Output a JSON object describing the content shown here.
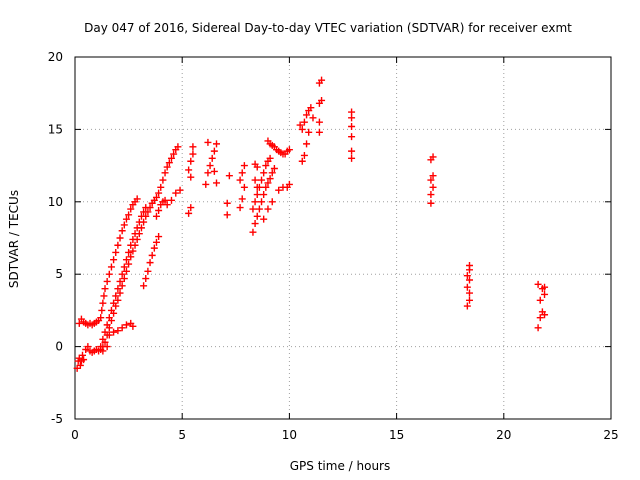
{
  "chart_data": {
    "type": "scatter",
    "title": "Day 047 of 2016, Sidereal Day-to-day VTEC variation (SDTVAR) for receiver exmt",
    "xlabel": "GPS time / hours",
    "ylabel": "SDTVAR / TECUs",
    "xlim": [
      0,
      25
    ],
    "ylim": [
      -5,
      20
    ],
    "xticks": [
      0,
      5,
      10,
      15,
      20,
      25
    ],
    "yticks": [
      -5,
      0,
      5,
      10,
      15,
      20
    ],
    "grid": true,
    "marker": "+",
    "color": "#ff0000",
    "series": [
      {
        "name": "SDTVAR",
        "points": [
          [
            0.1,
            -1.5
          ],
          [
            0.15,
            -1.0
          ],
          [
            0.2,
            -0.8
          ],
          [
            0.25,
            -1.3
          ],
          [
            0.3,
            -1.0
          ],
          [
            0.35,
            -0.6
          ],
          [
            0.4,
            -0.9
          ],
          [
            0.2,
            1.6
          ],
          [
            0.3,
            1.9
          ],
          [
            0.4,
            1.7
          ],
          [
            0.5,
            1.6
          ],
          [
            0.6,
            1.5
          ],
          [
            0.7,
            1.6
          ],
          [
            0.8,
            1.5
          ],
          [
            0.9,
            1.6
          ],
          [
            1.0,
            1.7
          ],
          [
            1.1,
            1.8
          ],
          [
            1.2,
            2.0
          ],
          [
            1.25,
            2.5
          ],
          [
            1.3,
            3.0
          ],
          [
            1.35,
            3.5
          ],
          [
            1.4,
            4.0
          ],
          [
            1.5,
            4.5
          ],
          [
            1.6,
            5.0
          ],
          [
            1.7,
            5.5
          ],
          [
            1.8,
            6.0
          ],
          [
            1.9,
            6.5
          ],
          [
            2.0,
            7.0
          ],
          [
            2.1,
            7.5
          ],
          [
            2.2,
            8.0
          ],
          [
            2.3,
            8.4
          ],
          [
            2.4,
            8.8
          ],
          [
            2.5,
            9.1
          ],
          [
            2.6,
            9.5
          ],
          [
            2.7,
            9.8
          ],
          [
            2.8,
            10.0
          ],
          [
            2.9,
            10.2
          ],
          [
            0.5,
            -0.2
          ],
          [
            0.6,
            0.0
          ],
          [
            0.7,
            -0.3
          ],
          [
            0.8,
            -0.4
          ],
          [
            0.9,
            -0.3
          ],
          [
            1.0,
            -0.2
          ],
          [
            1.1,
            -0.3
          ],
          [
            1.2,
            -0.2
          ],
          [
            1.3,
            0.0
          ],
          [
            1.4,
            0.3
          ],
          [
            1.5,
            0.8
          ],
          [
            1.6,
            1.3
          ],
          [
            1.7,
            1.8
          ],
          [
            1.8,
            2.3
          ],
          [
            1.9,
            2.8
          ],
          [
            2.0,
            3.2
          ],
          [
            2.1,
            3.7
          ],
          [
            2.2,
            4.2
          ],
          [
            2.3,
            4.7
          ],
          [
            2.4,
            5.2
          ],
          [
            2.5,
            5.7
          ],
          [
            2.6,
            6.2
          ],
          [
            2.7,
            6.6
          ],
          [
            2.8,
            7.0
          ],
          [
            2.9,
            7.4
          ],
          [
            3.0,
            7.8
          ],
          [
            3.1,
            8.2
          ],
          [
            3.2,
            8.6
          ],
          [
            3.3,
            9.0
          ],
          [
            3.4,
            9.3
          ],
          [
            3.5,
            9.6
          ],
          [
            3.6,
            9.9
          ],
          [
            3.7,
            10.1
          ],
          [
            3.8,
            10.3
          ],
          [
            1.2,
            0.0
          ],
          [
            1.3,
            0.5
          ],
          [
            1.4,
            1.0
          ],
          [
            1.5,
            1.5
          ],
          [
            1.6,
            2.0
          ],
          [
            1.7,
            2.5
          ],
          [
            1.8,
            3.0
          ],
          [
            1.9,
            3.5
          ],
          [
            2.0,
            4.0
          ],
          [
            2.1,
            4.5
          ],
          [
            2.2,
            5.0
          ],
          [
            2.3,
            5.5
          ],
          [
            2.4,
            6.0
          ],
          [
            2.5,
            6.5
          ],
          [
            2.6,
            7.0
          ],
          [
            2.7,
            7.4
          ],
          [
            2.8,
            7.8
          ],
          [
            2.9,
            8.2
          ],
          [
            3.0,
            8.6
          ],
          [
            3.1,
            9.0
          ],
          [
            3.2,
            9.3
          ],
          [
            3.3,
            9.6
          ],
          [
            1.3,
            -0.3
          ],
          [
            1.5,
            0.0
          ],
          [
            1.6,
            0.8
          ],
          [
            1.8,
            1.0
          ],
          [
            2.0,
            1.1
          ],
          [
            2.2,
            1.3
          ],
          [
            2.4,
            1.5
          ],
          [
            2.6,
            1.6
          ],
          [
            2.7,
            1.4
          ],
          [
            3.2,
            4.2
          ],
          [
            3.3,
            4.7
          ],
          [
            3.4,
            5.2
          ],
          [
            3.5,
            5.8
          ],
          [
            3.6,
            6.3
          ],
          [
            3.7,
            6.8
          ],
          [
            3.8,
            7.2
          ],
          [
            3.9,
            7.6
          ],
          [
            3.8,
            9.0
          ],
          [
            3.9,
            9.4
          ],
          [
            4.0,
            9.8
          ],
          [
            4.1,
            10.0
          ],
          [
            4.2,
            10.1
          ],
          [
            3.9,
            10.6
          ],
          [
            4.0,
            11.0
          ],
          [
            4.1,
            11.5
          ],
          [
            4.2,
            12.0
          ],
          [
            4.3,
            12.4
          ],
          [
            4.4,
            12.7
          ],
          [
            4.5,
            13.0
          ],
          [
            4.6,
            13.3
          ],
          [
            4.7,
            13.6
          ],
          [
            4.8,
            13.8
          ],
          [
            4.3,
            9.8
          ],
          [
            4.5,
            10.1
          ],
          [
            4.7,
            10.6
          ],
          [
            4.9,
            10.8
          ],
          [
            5.3,
            9.2
          ],
          [
            5.4,
            9.6
          ],
          [
            5.3,
            12.2
          ],
          [
            5.4,
            12.8
          ],
          [
            5.5,
            13.3
          ],
          [
            5.5,
            13.8
          ],
          [
            5.4,
            11.7
          ],
          [
            6.1,
            11.2
          ],
          [
            6.2,
            12.0
          ],
          [
            6.3,
            12.5
          ],
          [
            6.4,
            13.0
          ],
          [
            6.5,
            13.5
          ],
          [
            6.6,
            14.0
          ],
          [
            6.2,
            14.1
          ],
          [
            6.6,
            11.3
          ],
          [
            6.5,
            12.1
          ],
          [
            7.1,
            9.1
          ],
          [
            7.1,
            9.9
          ],
          [
            7.2,
            11.8
          ],
          [
            7.7,
            9.6
          ],
          [
            7.8,
            10.2
          ],
          [
            7.9,
            11.0
          ],
          [
            7.8,
            12.0
          ],
          [
            7.9,
            12.5
          ],
          [
            7.7,
            11.5
          ],
          [
            8.3,
            7.9
          ],
          [
            8.4,
            8.5
          ],
          [
            8.5,
            9.0
          ],
          [
            8.6,
            9.5
          ],
          [
            8.7,
            10.0
          ],
          [
            8.8,
            10.5
          ],
          [
            8.9,
            11.0
          ],
          [
            9.0,
            11.3
          ],
          [
            9.1,
            11.6
          ],
          [
            9.2,
            12.0
          ],
          [
            9.3,
            12.3
          ],
          [
            8.3,
            9.5
          ],
          [
            8.4,
            10.0
          ],
          [
            8.5,
            10.5
          ],
          [
            8.6,
            11.0
          ],
          [
            8.7,
            11.5
          ],
          [
            8.8,
            12.0
          ],
          [
            8.9,
            12.5
          ],
          [
            9.0,
            12.8
          ],
          [
            9.1,
            13.0
          ],
          [
            8.4,
            12.6
          ],
          [
            8.5,
            12.4
          ],
          [
            8.4,
            11.5
          ],
          [
            8.5,
            11.0
          ],
          [
            9.0,
            14.2
          ],
          [
            9.1,
            14.0
          ],
          [
            9.2,
            13.9
          ],
          [
            9.3,
            13.8
          ],
          [
            9.4,
            13.6
          ],
          [
            9.5,
            13.5
          ],
          [
            9.6,
            13.4
          ],
          [
            9.7,
            13.3
          ],
          [
            9.8,
            13.3
          ],
          [
            9.9,
            13.5
          ],
          [
            10.0,
            13.6
          ],
          [
            8.8,
            8.8
          ],
          [
            9.0,
            9.5
          ],
          [
            9.2,
            10.0
          ],
          [
            9.5,
            10.8
          ],
          [
            9.7,
            11.0
          ],
          [
            9.9,
            11.0
          ],
          [
            10.0,
            11.2
          ],
          [
            10.6,
            12.8
          ],
          [
            10.7,
            13.2
          ],
          [
            10.8,
            14.0
          ],
          [
            10.9,
            14.8
          ],
          [
            10.6,
            15.0
          ],
          [
            10.7,
            15.5
          ],
          [
            10.8,
            16.0
          ],
          [
            10.9,
            16.3
          ],
          [
            11.0,
            16.5
          ],
          [
            11.1,
            15.8
          ],
          [
            10.5,
            15.3
          ],
          [
            11.4,
            14.8
          ],
          [
            11.4,
            15.5
          ],
          [
            11.4,
            16.8
          ],
          [
            11.5,
            17.0
          ],
          [
            11.4,
            18.2
          ],
          [
            11.5,
            18.4
          ],
          [
            12.9,
            13.0
          ],
          [
            12.9,
            13.5
          ],
          [
            12.9,
            14.5
          ],
          [
            12.9,
            15.2
          ],
          [
            12.9,
            15.8
          ],
          [
            12.9,
            16.2
          ],
          [
            16.6,
            9.9
          ],
          [
            16.6,
            10.5
          ],
          [
            16.7,
            11.0
          ],
          [
            16.6,
            11.5
          ],
          [
            16.7,
            11.8
          ],
          [
            16.6,
            12.9
          ],
          [
            16.7,
            13.1
          ],
          [
            18.3,
            2.8
          ],
          [
            18.4,
            3.2
          ],
          [
            18.4,
            3.7
          ],
          [
            18.3,
            4.1
          ],
          [
            18.4,
            4.6
          ],
          [
            18.3,
            4.9
          ],
          [
            18.4,
            5.3
          ],
          [
            18.4,
            5.6
          ],
          [
            21.6,
            1.3
          ],
          [
            21.7,
            2.0
          ],
          [
            21.8,
            2.4
          ],
          [
            21.9,
            2.2
          ],
          [
            21.7,
            3.2
          ],
          [
            21.9,
            3.6
          ],
          [
            21.8,
            4.0
          ],
          [
            21.6,
            4.3
          ],
          [
            21.9,
            4.1
          ]
        ]
      }
    ]
  }
}
